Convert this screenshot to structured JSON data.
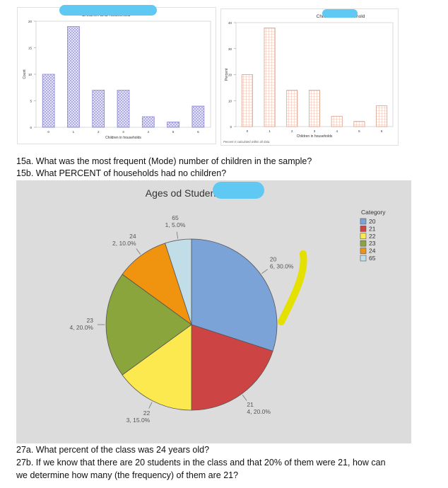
{
  "chart_data": [
    {
      "type": "bar",
      "title": "Children and household",
      "xlabel": "Children in households",
      "ylabel": "Count",
      "categories": [
        "0",
        "1",
        "2",
        "3",
        "4",
        "5",
        "6"
      ],
      "values": [
        10,
        19,
        7,
        7,
        2,
        1,
        4
      ],
      "ylim": [
        0,
        20
      ],
      "yticks": [
        "0",
        "5",
        "10",
        "15",
        "20"
      ],
      "bar_color": "#a9a6e6",
      "note": ""
    },
    {
      "type": "bar",
      "title": "Children and household",
      "xlabel": "Children in households",
      "ylabel": "Percent",
      "categories": [
        "0",
        "1",
        "2",
        "3",
        "4",
        "5",
        "6"
      ],
      "values": [
        20,
        38,
        14,
        14,
        4,
        2,
        8
      ],
      "ylim": [
        0,
        40
      ],
      "yticks": [
        "0",
        "10",
        "20",
        "30",
        "40"
      ],
      "bar_color": "#f0c4b4",
      "note": "Percent is calculated within all data."
    },
    {
      "type": "pie",
      "title": "Ages od Students",
      "legend_title": "Category",
      "slices": [
        {
          "label": "20",
          "count": 6,
          "percent": "30.0%",
          "color": "#7ba3d8"
        },
        {
          "label": "21",
          "count": 4,
          "percent": "20.0%",
          "color": "#cc4444"
        },
        {
          "label": "22",
          "count": 3,
          "percent": "15.0%",
          "color": "#fce94f"
        },
        {
          "label": "23",
          "count": 4,
          "percent": "20.0%",
          "color": "#8aa53b"
        },
        {
          "label": "24",
          "count": 2,
          "percent": "10.0%",
          "color": "#f0930f"
        },
        {
          "label": "65",
          "count": 1,
          "percent": "5.0%",
          "color": "#c1dde8"
        }
      ]
    }
  ],
  "questions": {
    "q15a": "15a. What was the most frequent (Mode) number of children in the sample?",
    "q15b": "15b. What PERCENT of households had no children?",
    "q27a": "27a. What percent of the class was 24 years old?",
    "q27b_line1": "27b. If we know that there are 20 students in the class and that 20% of them were 21, how can",
    "q27b_line2": "we determine how many (the frequency) of them are 21?"
  }
}
